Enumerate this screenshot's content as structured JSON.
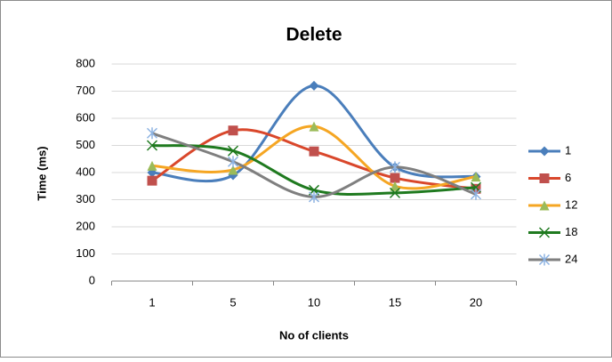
{
  "chart_data": {
    "type": "line",
    "title": "Delete",
    "xlabel": "No of clients",
    "ylabel": "Time (ms)",
    "categories": [
      "1",
      "5",
      "10",
      "15",
      "20"
    ],
    "series": [
      {
        "name": "1",
        "color": "#4a7ebb",
        "marker_color": "#4a7ebb",
        "marker": "diamond",
        "values": [
          400,
          390,
          720,
          420,
          385
        ]
      },
      {
        "name": "6",
        "color": "#d9472b",
        "marker_color": "#c0504d",
        "marker": "square",
        "values": [
          370,
          555,
          478,
          380,
          340
        ]
      },
      {
        "name": "12",
        "color": "#f5a623",
        "marker_color": "#9bbb59",
        "marker": "triangle",
        "values": [
          425,
          410,
          570,
          350,
          385
        ]
      },
      {
        "name": "18",
        "color": "#1f7a1f",
        "marker_color": "#1f7a1f",
        "marker": "x",
        "values": [
          500,
          480,
          335,
          325,
          345
        ]
      },
      {
        "name": "24",
        "color": "#7f7f7f",
        "marker_color": "#8db3e2",
        "marker": "star",
        "values": [
          545,
          440,
          310,
          420,
          320
        ]
      }
    ],
    "ylim": [
      0,
      800
    ],
    "yticks": [
      0,
      100,
      200,
      300,
      400,
      500,
      600,
      700,
      800
    ],
    "grid": true,
    "smooth": true,
    "legend": "right"
  }
}
